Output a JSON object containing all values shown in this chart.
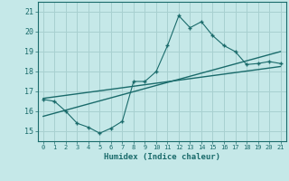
{
  "title": "",
  "xlabel": "Humidex (Indice chaleur)",
  "background_color": "#c5e8e8",
  "grid_color": "#a8d0d0",
  "line_color": "#1a6b6b",
  "xlim": [
    -0.5,
    21.5
  ],
  "ylim": [
    14.5,
    21.5
  ],
  "xticks": [
    0,
    1,
    2,
    3,
    4,
    5,
    6,
    7,
    8,
    9,
    10,
    11,
    12,
    13,
    14,
    15,
    16,
    17,
    18,
    19,
    20,
    21
  ],
  "yticks": [
    15,
    16,
    17,
    18,
    19,
    20,
    21
  ],
  "main_x": [
    0,
    1,
    2,
    3,
    4,
    5,
    6,
    7,
    8,
    9,
    10,
    11,
    12,
    13,
    14,
    15,
    16,
    17,
    18,
    19,
    20,
    21
  ],
  "main_y": [
    16.6,
    16.5,
    16.0,
    15.4,
    15.2,
    14.9,
    15.15,
    15.5,
    17.5,
    17.5,
    18.0,
    19.3,
    20.8,
    20.2,
    20.5,
    19.8,
    19.3,
    19.0,
    18.35,
    18.4,
    18.5,
    18.4
  ],
  "trend1_x": [
    0,
    21
  ],
  "trend1_y": [
    16.65,
    18.25
  ],
  "trend2_x": [
    0,
    21
  ],
  "trend2_y": [
    15.75,
    19.0
  ]
}
